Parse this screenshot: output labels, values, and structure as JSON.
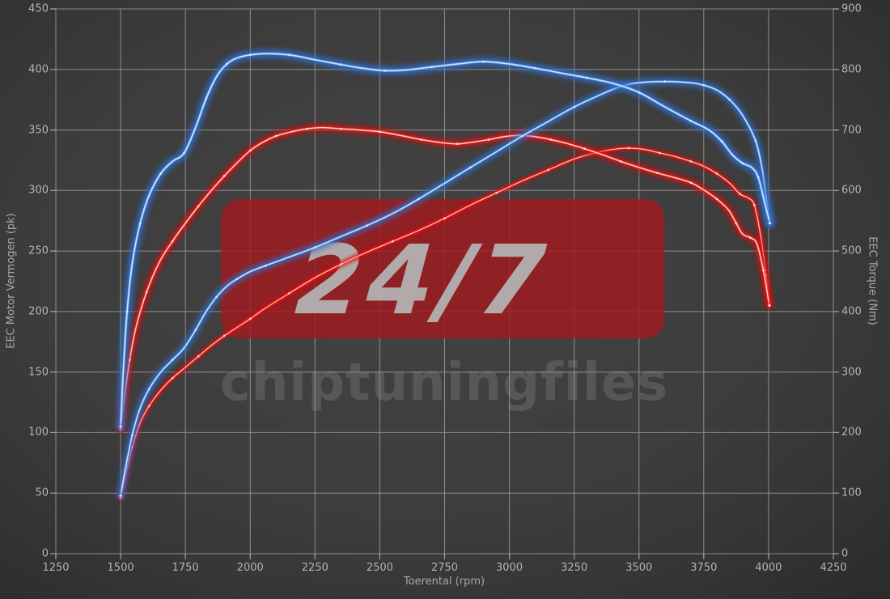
{
  "watermark": {
    "badge_text": "24/7",
    "brand_text": "chiptuningfiles",
    "badge_color": "#9e1b20",
    "badge_text_color": "#b5b5b5",
    "brand_text_color": "#8f8f8f"
  },
  "chart_data": {
    "type": "line",
    "title": "",
    "xlabel": "Toerental (rpm)",
    "ylabel_left": "EEC Motor Vermogen (pk)",
    "ylabel_right": "EEC Torque (Nm)",
    "x_range": [
      1250,
      4250
    ],
    "y_left_range": [
      0,
      450
    ],
    "y_right_range": [
      0,
      900
    ],
    "x_ticks": [
      1250,
      1500,
      1750,
      2000,
      2250,
      2500,
      2750,
      3000,
      3250,
      3500,
      3750,
      4000,
      4250
    ],
    "y_left_ticks": [
      0,
      50,
      100,
      150,
      200,
      250,
      300,
      350,
      400,
      450
    ],
    "y_right_ticks": [
      0,
      100,
      200,
      300,
      400,
      500,
      600,
      700,
      800,
      900
    ],
    "grid": true,
    "legend": "none",
    "colors": {
      "tuned": "#2f6fd0",
      "original": "#dd1111"
    },
    "series": [
      {
        "name": "original-power",
        "axis": "left",
        "unit": "pk",
        "color": "#dd1111",
        "points": [
          [
            1500,
            46
          ],
          [
            1520,
            66
          ],
          [
            1545,
            88
          ],
          [
            1575,
            108
          ],
          [
            1610,
            122
          ],
          [
            1655,
            135
          ],
          [
            1700,
            145
          ],
          [
            1750,
            154
          ],
          [
            1800,
            163
          ],
          [
            1850,
            172
          ],
          [
            1900,
            180
          ],
          [
            1950,
            187
          ],
          [
            2000,
            194
          ],
          [
            2060,
            203
          ],
          [
            2150,
            215
          ],
          [
            2250,
            228
          ],
          [
            2350,
            239
          ],
          [
            2450,
            249
          ],
          [
            2550,
            258
          ],
          [
            2650,
            267
          ],
          [
            2750,
            277
          ],
          [
            2850,
            288
          ],
          [
            2950,
            298
          ],
          [
            3050,
            308
          ],
          [
            3150,
            317
          ],
          [
            3250,
            326
          ],
          [
            3330,
            331
          ],
          [
            3400,
            334
          ],
          [
            3460,
            335
          ],
          [
            3520,
            334
          ],
          [
            3580,
            331
          ],
          [
            3640,
            328
          ],
          [
            3700,
            324
          ],
          [
            3750,
            320
          ],
          [
            3800,
            314
          ],
          [
            3850,
            306
          ],
          [
            3890,
            297
          ],
          [
            3920,
            294
          ],
          [
            3945,
            288
          ],
          [
            3970,
            262
          ],
          [
            3990,
            230
          ],
          [
            4003,
            206
          ]
        ]
      },
      {
        "name": "original-torque",
        "axis": "right",
        "unit": "Nm",
        "color": "#dd1111",
        "points": [
          [
            1500,
            206
          ],
          [
            1515,
            260
          ],
          [
            1535,
            320
          ],
          [
            1560,
            375
          ],
          [
            1600,
            432
          ],
          [
            1650,
            482
          ],
          [
            1700,
            516
          ],
          [
            1750,
            546
          ],
          [
            1800,
            574
          ],
          [
            1850,
            600
          ],
          [
            1900,
            624
          ],
          [
            1950,
            646
          ],
          [
            2000,
            666
          ],
          [
            2050,
            680
          ],
          [
            2100,
            690
          ],
          [
            2160,
            697
          ],
          [
            2220,
            702
          ],
          [
            2280,
            704
          ],
          [
            2350,
            702
          ],
          [
            2420,
            700
          ],
          [
            2500,
            697
          ],
          [
            2580,
            691
          ],
          [
            2660,
            684
          ],
          [
            2740,
            679
          ],
          [
            2800,
            677
          ],
          [
            2860,
            680
          ],
          [
            2920,
            684
          ],
          [
            2980,
            689
          ],
          [
            3040,
            691
          ],
          [
            3100,
            689
          ],
          [
            3160,
            684
          ],
          [
            3220,
            678
          ],
          [
            3290,
            669
          ],
          [
            3360,
            659
          ],
          [
            3430,
            648
          ],
          [
            3500,
            638
          ],
          [
            3570,
            629
          ],
          [
            3640,
            621
          ],
          [
            3700,
            613
          ],
          [
            3750,
            601
          ],
          [
            3800,
            586
          ],
          [
            3845,
            568
          ],
          [
            3875,
            546
          ],
          [
            3900,
            528
          ],
          [
            3930,
            522
          ],
          [
            3955,
            512
          ],
          [
            3980,
            468
          ],
          [
            4003,
            410
          ]
        ]
      },
      {
        "name": "tuned-power",
        "axis": "left",
        "unit": "pk",
        "color": "#2f6fd0",
        "points": [
          [
            1500,
            48
          ],
          [
            1520,
            72
          ],
          [
            1545,
            98
          ],
          [
            1575,
            120
          ],
          [
            1610,
            136
          ],
          [
            1655,
            150
          ],
          [
            1700,
            160
          ],
          [
            1745,
            170
          ],
          [
            1790,
            185
          ],
          [
            1830,
            200
          ],
          [
            1870,
            212
          ],
          [
            1910,
            221
          ],
          [
            1950,
            227
          ],
          [
            2000,
            233
          ],
          [
            2060,
            238
          ],
          [
            2150,
            245
          ],
          [
            2250,
            253
          ],
          [
            2350,
            262
          ],
          [
            2450,
            271
          ],
          [
            2550,
            281
          ],
          [
            2650,
            293
          ],
          [
            2750,
            306
          ],
          [
            2850,
            319
          ],
          [
            2950,
            332
          ],
          [
            3050,
            345
          ],
          [
            3150,
            357
          ],
          [
            3250,
            369
          ],
          [
            3350,
            379
          ],
          [
            3430,
            386
          ],
          [
            3500,
            389
          ],
          [
            3600,
            390
          ],
          [
            3700,
            389
          ],
          [
            3750,
            387
          ],
          [
            3800,
            383
          ],
          [
            3850,
            375
          ],
          [
            3900,
            362
          ],
          [
            3950,
            341
          ],
          [
            3975,
            318
          ],
          [
            3990,
            295
          ],
          [
            4005,
            273
          ]
        ]
      },
      {
        "name": "tuned-torque",
        "axis": "right",
        "unit": "Nm",
        "color": "#2f6fd0",
        "points": [
          [
            1500,
            210
          ],
          [
            1510,
            300
          ],
          [
            1525,
            400
          ],
          [
            1545,
            480
          ],
          [
            1575,
            545
          ],
          [
            1610,
            592
          ],
          [
            1655,
            628
          ],
          [
            1700,
            648
          ],
          [
            1745,
            662
          ],
          [
            1790,
            705
          ],
          [
            1830,
            752
          ],
          [
            1870,
            788
          ],
          [
            1910,
            809
          ],
          [
            1950,
            819
          ],
          [
            2000,
            824
          ],
          [
            2060,
            826
          ],
          [
            2150,
            824
          ],
          [
            2250,
            816
          ],
          [
            2350,
            808
          ],
          [
            2450,
            801
          ],
          [
            2520,
            798
          ],
          [
            2600,
            799
          ],
          [
            2700,
            804
          ],
          [
            2800,
            809
          ],
          [
            2900,
            813
          ],
          [
            3000,
            809
          ],
          [
            3100,
            802
          ],
          [
            3200,
            794
          ],
          [
            3300,
            786
          ],
          [
            3400,
            777
          ],
          [
            3500,
            762
          ],
          [
            3600,
            738
          ],
          [
            3700,
            715
          ],
          [
            3770,
            700
          ],
          [
            3820,
            681
          ],
          [
            3860,
            659
          ],
          [
            3900,
            645
          ],
          [
            3935,
            638
          ],
          [
            3960,
            622
          ],
          [
            3985,
            580
          ],
          [
            4005,
            546
          ]
        ]
      }
    ]
  }
}
